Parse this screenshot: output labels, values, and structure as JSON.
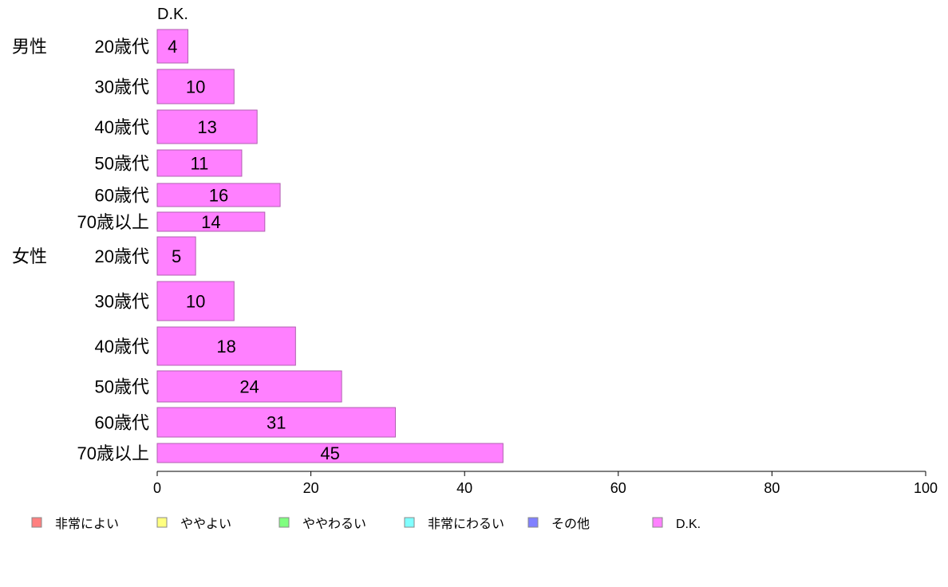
{
  "chart_data": {
    "type": "bar",
    "orientation": "horizontal",
    "series_title": "D.K.",
    "groups": [
      {
        "name": "男性",
        "categories": [
          "20歳代",
          "30歳代",
          "40歳代",
          "50歳代",
          "60歳代",
          "70歳以上"
        ],
        "values": [
          4,
          10,
          13,
          11,
          16,
          14
        ]
      },
      {
        "name": "女性",
        "categories": [
          "20歳代",
          "30歳代",
          "40歳代",
          "50歳代",
          "60歳代",
          "70歳以上"
        ],
        "values": [
          5,
          10,
          18,
          24,
          31,
          45
        ]
      }
    ],
    "xlim": [
      0,
      100
    ],
    "xticks": [
      0,
      20,
      40,
      60,
      80,
      100
    ],
    "grid": false,
    "bar_color": "#ff80ff",
    "legend_position": "bottom",
    "legend": [
      {
        "label": "非常によい",
        "color": "#ff8080"
      },
      {
        "label": "ややよい",
        "color": "#ffff80"
      },
      {
        "label": "ややわるい",
        "color": "#80ff80"
      },
      {
        "label": "非常にわるい",
        "color": "#80ffff"
      },
      {
        "label": "その他",
        "color": "#8080ff"
      },
      {
        "label": "D.K.",
        "color": "#ff80ff"
      }
    ]
  }
}
